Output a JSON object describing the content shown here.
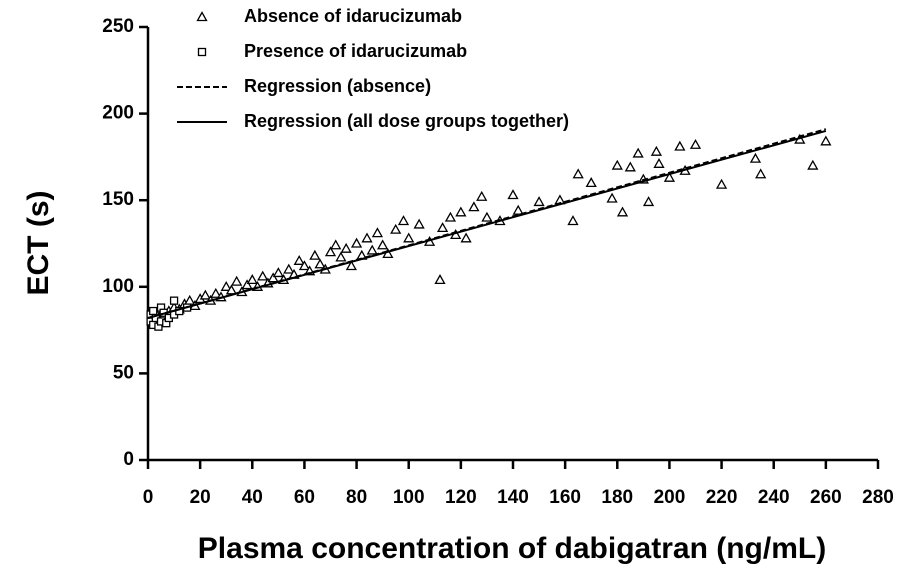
{
  "chart_data": {
    "type": "scatter",
    "xlabel": "Plasma concentration of dabigatran (ng/mL)",
    "ylabel": "ECT (s)",
    "xlim": [
      0,
      280
    ],
    "xticks": [
      0,
      20,
      40,
      60,
      80,
      100,
      120,
      140,
      160,
      180,
      200,
      220,
      240,
      260,
      280
    ],
    "ylim": [
      0,
      250
    ],
    "yticks": [
      0,
      50,
      100,
      150,
      200,
      250
    ],
    "series": [
      {
        "name": "Absence of idarucizumab",
        "color": "#000000",
        "marker": "triangle",
        "x": [
          2,
          3,
          4,
          5,
          6,
          8,
          10,
          12,
          14,
          16,
          18,
          20,
          22,
          24,
          26,
          28,
          30,
          32,
          34,
          36,
          38,
          40,
          42,
          44,
          46,
          48,
          50,
          52,
          54,
          56,
          58,
          60,
          62,
          64,
          66,
          68,
          70,
          72,
          74,
          76,
          78,
          80,
          82,
          84,
          86,
          88,
          90,
          92,
          95,
          98,
          100,
          104,
          108,
          112,
          113,
          116,
          118,
          120,
          122,
          125,
          128,
          130,
          135,
          140,
          142,
          150,
          158,
          163,
          165,
          170,
          178,
          180,
          182,
          185,
          188,
          190,
          192,
          195,
          196,
          200,
          204,
          206,
          210,
          220,
          233,
          235,
          250,
          255,
          260
        ],
        "values": [
          82,
          85,
          80,
          84,
          83,
          86,
          88,
          87,
          90,
          92,
          89,
          93,
          95,
          92,
          96,
          94,
          100,
          98,
          103,
          97,
          101,
          104,
          100,
          106,
          102,
          105,
          108,
          104,
          110,
          107,
          115,
          112,
          109,
          118,
          113,
          110,
          120,
          124,
          117,
          122,
          112,
          125,
          118,
          128,
          121,
          131,
          124,
          119,
          133,
          138,
          128,
          136,
          126,
          104,
          134,
          140,
          130,
          143,
          128,
          146,
          152,
          140,
          138,
          153,
          144,
          149,
          150,
          138,
          165,
          160,
          151,
          170,
          143,
          169,
          177,
          162,
          149,
          178,
          171,
          163,
          181,
          167,
          182,
          159,
          174,
          165,
          185,
          170,
          184
        ]
      },
      {
        "name": "Presence of idarucizumab",
        "color": "#000000",
        "marker": "square",
        "x": [
          1,
          1,
          2,
          2,
          3,
          4,
          5,
          5,
          6,
          7,
          8,
          10,
          10,
          12,
          15
        ],
        "values": [
          80,
          84,
          78,
          86,
          82,
          77,
          80,
          88,
          85,
          79,
          82,
          84,
          92,
          86,
          88
        ]
      },
      {
        "name": "Regression (absence)",
        "color": "#000000",
        "line_style": "dashed",
        "x": [
          0,
          260
        ],
        "values": [
          82,
          191
        ]
      },
      {
        "name": "Regression (all dose groups together)",
        "color": "#000000",
        "line_style": "solid",
        "x": [
          0,
          260
        ],
        "values": [
          82,
          190
        ]
      }
    ]
  }
}
